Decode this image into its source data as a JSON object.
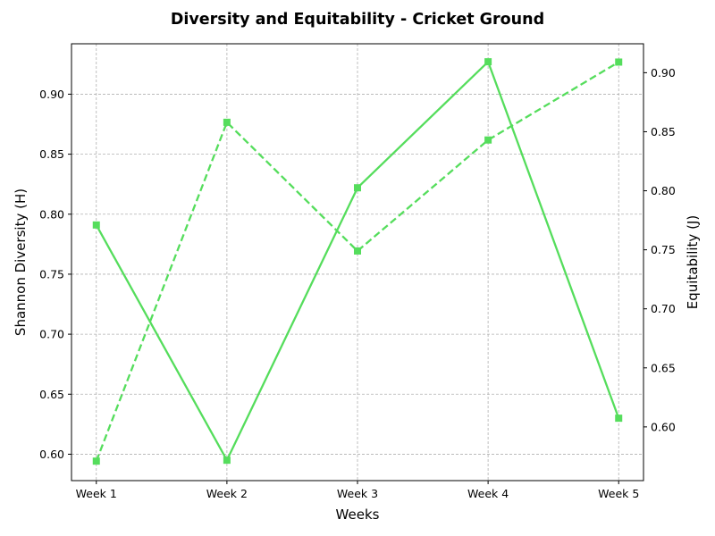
{
  "chart_data": {
    "type": "line",
    "title": "Diversity and Equitability - Cricket Ground",
    "xlabel": "Weeks",
    "ylabel_left": "Shannon Diversity (H)",
    "ylabel_right": "Equitability (J)",
    "categories": [
      "Week 1",
      "Week 2",
      "Week 3",
      "Week 4",
      "Week 5"
    ],
    "y_left": {
      "lim": [
        0.578,
        0.942
      ],
      "ticks": [
        "0.60",
        "0.65",
        "0.70",
        "0.75",
        "0.80",
        "0.85",
        "0.90"
      ]
    },
    "y_right": {
      "lim": [
        0.5545,
        0.9245
      ],
      "ticks": [
        "0.60",
        "0.65",
        "0.70",
        "0.75",
        "0.80",
        "0.85",
        "0.90"
      ]
    },
    "grid": true,
    "series": [
      {
        "axis": "left",
        "style": "solid",
        "marker": "square",
        "color": "#55dd5c",
        "values": [
          0.791,
          0.595,
          0.822,
          0.927,
          0.63
        ]
      },
      {
        "axis": "right",
        "style": "dashed",
        "marker": "square",
        "color": "#55dd5c",
        "values": [
          0.571,
          0.858,
          0.749,
          0.843,
          0.909
        ]
      }
    ]
  }
}
